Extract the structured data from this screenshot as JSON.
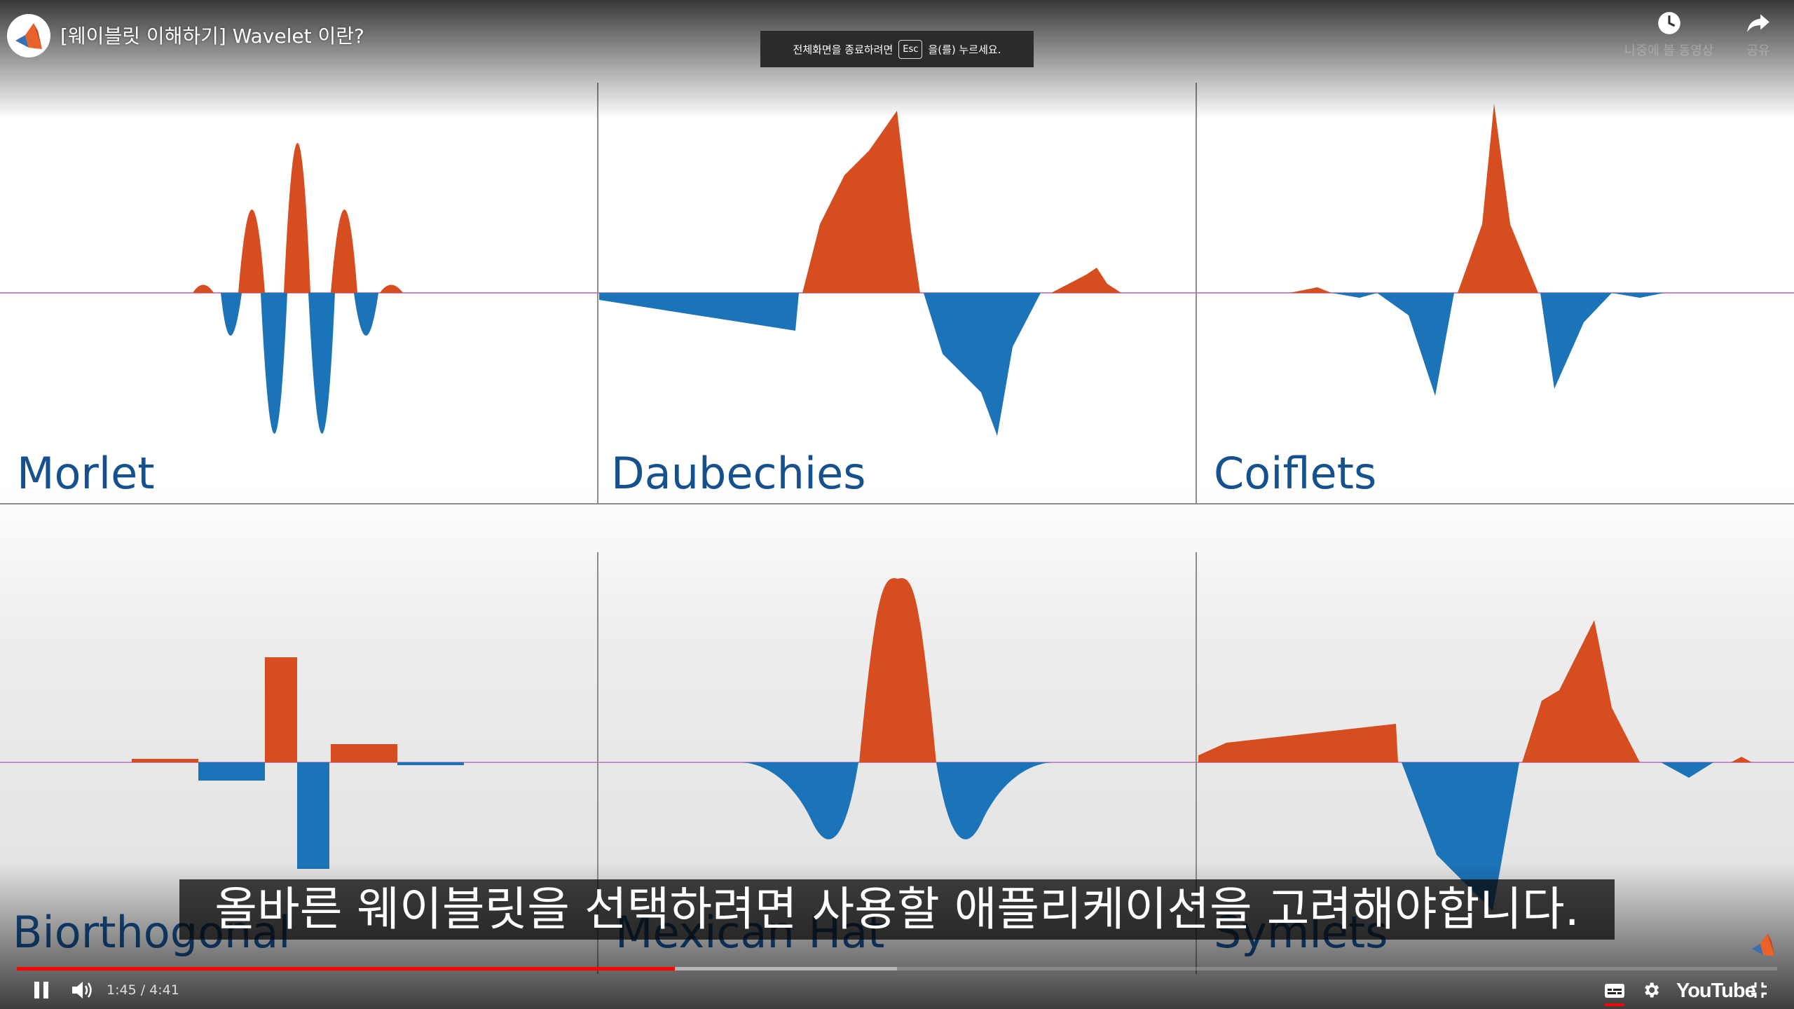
{
  "player": {
    "title": "[웨이블릿 이해하기] Wavelet 이란?",
    "fullscreen_hint": {
      "before": "전체화면을 종료하려면",
      "key": "Esc",
      "after": "을(를) 누르세요."
    },
    "top_actions": [
      {
        "icon": "clock-icon",
        "label": "나중에 볼 동영상"
      },
      {
        "icon": "share-arrow-icon",
        "label": "공유"
      }
    ],
    "subtitle": "올바른 웨이블릿을 선택하려면 사용할 애플리케이션을 고려해야합니다.",
    "current_time": "1:45",
    "duration": "4:41",
    "time_separator": " / ",
    "progress_fraction": 0.3737,
    "buffered_fraction": 0.5,
    "brand": "YouTube",
    "state": "playing",
    "colors": {
      "positive": "#d64e1f",
      "negative": "#1c74b8",
      "label": "#15508f",
      "progress": "#ff0000"
    }
  },
  "video_frame": {
    "panels": [
      {
        "label": "Morlet"
      },
      {
        "label": "Daubechies"
      },
      {
        "label": "Coiflets"
      },
      {
        "label": "Biorthogonal"
      },
      {
        "label": "Mexican Hat"
      },
      {
        "label": "Symlets"
      }
    ]
  }
}
